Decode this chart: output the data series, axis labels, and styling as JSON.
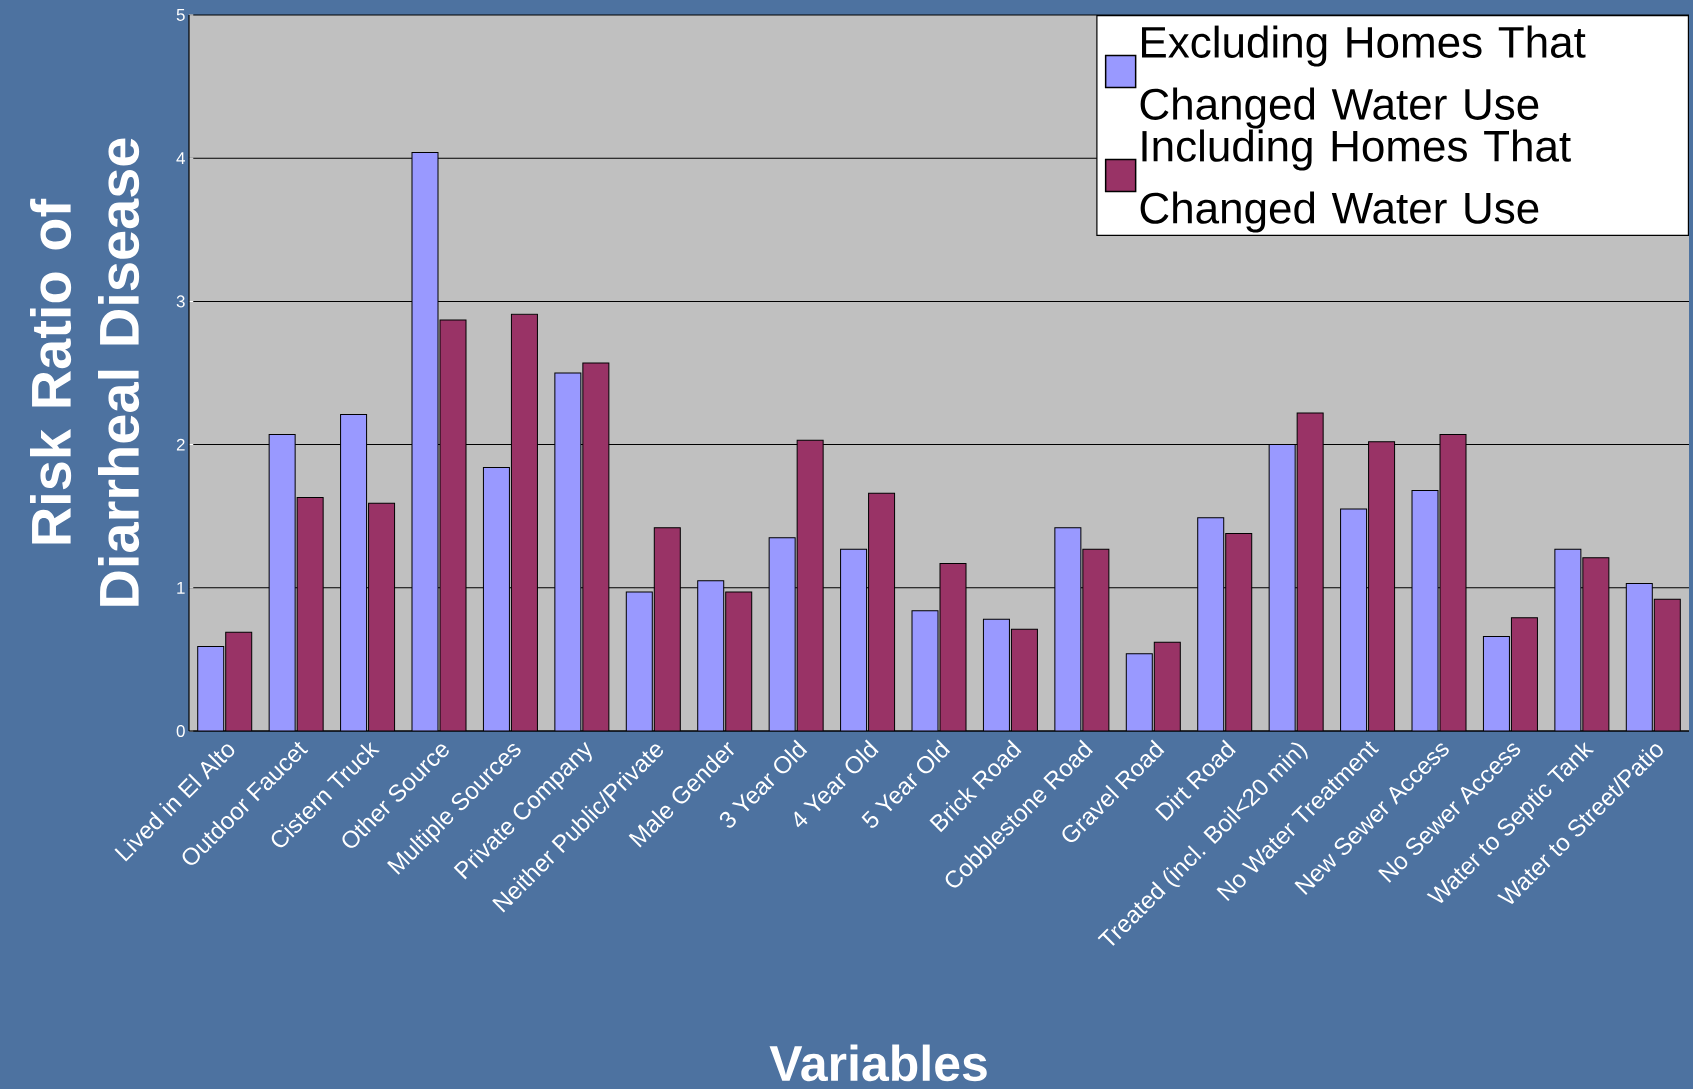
{
  "chart_data": {
    "type": "bar",
    "xlabel": "Variables",
    "ylabel": "Risk Ratio  of Diarrheal Disease",
    "categories": [
      "Lived in El Alto",
      "Outdoor Faucet",
      "Cistern Truck",
      "Other Source",
      "Multiple Sources",
      "Private Company",
      "Neither Public/Private",
      "Male Gender",
      "3 Year Old",
      "4 Year Old",
      "5 Year Old",
      "Brick Road",
      "Cobblestone Road",
      "Gravel Road",
      "Dirt Road",
      "Treated (incl. Boil<20 min)",
      "No Water Treatment",
      "New Sewer Access",
      "No Sewer Access",
      "Water to Septic Tank",
      "Water to Street/Patio"
    ],
    "series": [
      {
        "name": "Excluding Homes That Changed Water Use",
        "color": "#9999ff",
        "values": [
          0.59,
          2.07,
          2.21,
          4.04,
          1.84,
          2.5,
          0.97,
          1.05,
          1.35,
          1.27,
          0.84,
          0.78,
          1.42,
          0.54,
          1.49,
          2.0,
          1.55,
          1.68,
          0.66,
          1.27,
          1.03
        ]
      },
      {
        "name": "Including Homes That Changed Water Use",
        "color": "#993366",
        "values": [
          0.69,
          1.63,
          1.59,
          2.87,
          2.91,
          2.57,
          1.42,
          0.97,
          2.03,
          1.66,
          1.17,
          0.71,
          1.27,
          0.62,
          1.38,
          2.22,
          2.02,
          2.07,
          0.79,
          1.21,
          0.92
        ]
      }
    ],
    "ylim": [
      0,
      5
    ],
    "yticks": [
      0,
      1,
      2,
      3,
      4,
      5
    ],
    "grid": "y",
    "legend": "top right"
  }
}
